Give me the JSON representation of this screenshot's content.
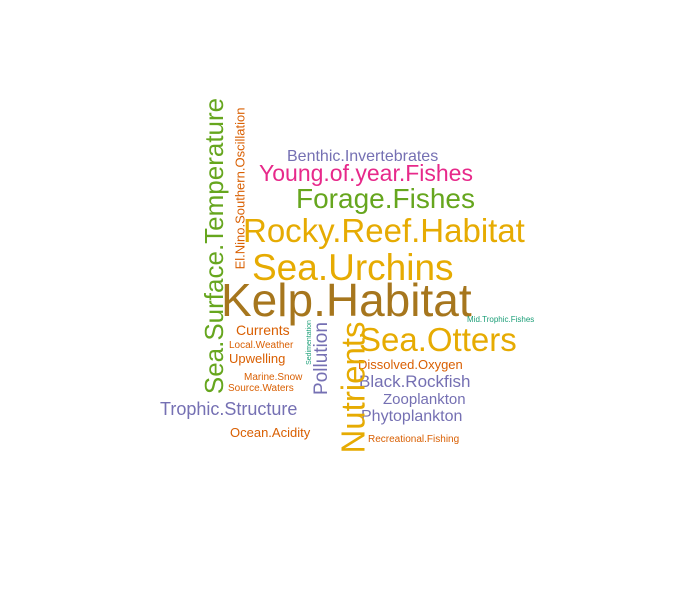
{
  "words": {
    "kelp_habitat": "Kelp.Habitat",
    "sea_urchins": "Sea.Urchins",
    "rocky_reef_habitat": "Rocky.Reef.Habitat",
    "forage_fishes": "Forage.Fishes",
    "young_of_year_fishes": "Young.of.year.Fishes",
    "benthic_invertebrates": "Benthic.Invertebrates",
    "sea_otters": "Sea.Otters",
    "mid_trophic_fishes": "Mid.Trophic.Fishes",
    "dissolved_oxygen": "Dissolved.Oxygen",
    "black_rockfish": "Black.Rockfish",
    "zooplankton": "Zooplankton",
    "phytoplankton": "Phytoplankton",
    "recreational_fishing": "Recreational.Fishing",
    "trophic_structure": "Trophic.Structure",
    "ocean_acidity": "Ocean.Acidity",
    "currents": "Currents",
    "local_weather": "Local.Weather",
    "upwelling": "Upwelling",
    "marine_snow": "Marine.Snow",
    "source_waters": "Source.Waters",
    "sea_surface_temperature": "Sea.Surface.Temperature",
    "el_nino_southern_oscillation": "El.Nino.Southern.Oscillation",
    "nutrients": "Nutrients",
    "pollution": "Pollution",
    "sedimentation": "Sedimentation"
  },
  "colors": {
    "brown": "#a6761d",
    "gold": "#e6ab02",
    "green": "#66a61e",
    "magenta": "#e7298a",
    "purple": "#7570b3",
    "orange": "#d95f02",
    "teal": "#1b9e77"
  }
}
